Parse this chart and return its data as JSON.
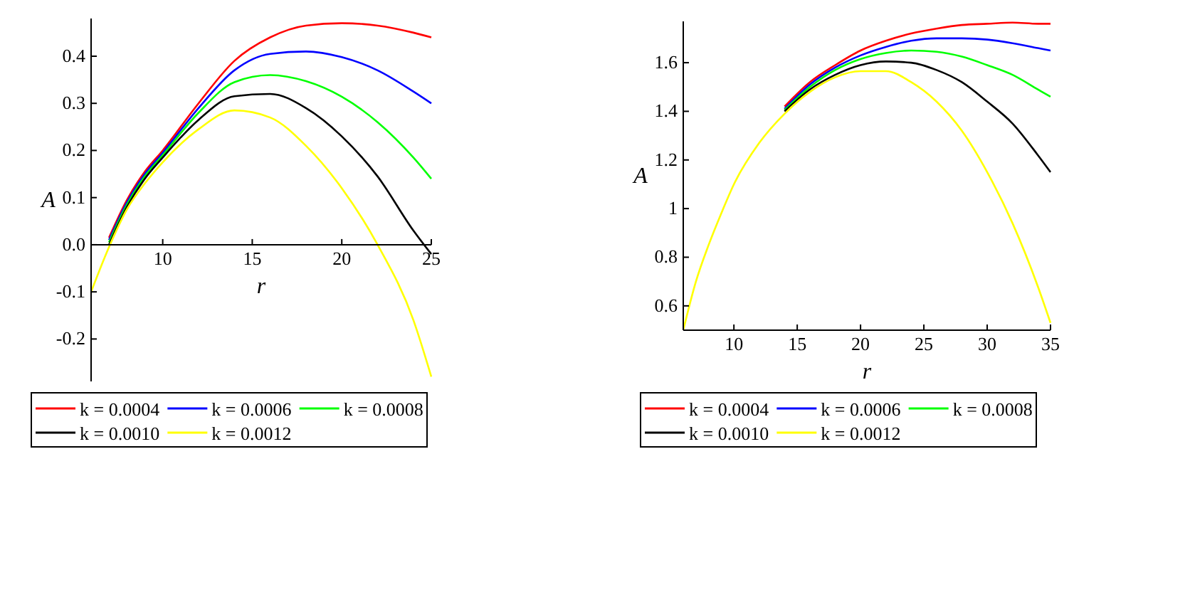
{
  "chart_data": [
    {
      "type": "line",
      "xlabel": "r",
      "ylabel": "A",
      "legend": "bottom",
      "xlim": [
        6,
        25
      ],
      "ylim": [
        -0.29,
        0.48
      ],
      "xticks": [
        10,
        15,
        20,
        25
      ],
      "yticks": [
        -0.2,
        -0.1,
        {
          "value": 0,
          "label": "0.0"
        },
        0.1,
        0.2,
        0.3,
        0.4
      ],
      "x": [
        6,
        7,
        8,
        9,
        10,
        12,
        14,
        16,
        18,
        20,
        22,
        24,
        25
      ],
      "series": [
        {
          "name": "k = 0.0004",
          "color": "#ff0000",
          "values": [
            null,
            0.015,
            0.095,
            0.155,
            0.2,
            0.3,
            0.39,
            0.44,
            0.465,
            0.47,
            0.465,
            0.45,
            0.44
          ]
        },
        {
          "name": "k = 0.0006",
          "color": "#0000ff",
          "values": [
            null,
            0.01,
            0.09,
            0.15,
            0.195,
            0.29,
            0.37,
            0.405,
            0.41,
            0.398,
            0.37,
            0.325,
            0.3
          ]
        },
        {
          "name": "k = 0.0008",
          "color": "#00ff00",
          "values": [
            null,
            0.005,
            0.085,
            0.145,
            0.19,
            0.28,
            0.345,
            0.36,
            0.347,
            0.314,
            0.26,
            0.185,
            0.14
          ]
        },
        {
          "name": "k = 0.0010",
          "color": "#000000",
          "values": [
            null,
            0,
            0.08,
            0.14,
            0.185,
            0.265,
            0.315,
            0.32,
            0.29,
            0.23,
            0.145,
            0.03,
            -0.02
          ]
        },
        {
          "name": "k = 0.0012",
          "color": "#ffff00",
          "values": [
            -0.1,
            -0.005,
            0.075,
            0.13,
            0.175,
            0.245,
            0.285,
            0.27,
            0.21,
            0.12,
            0,
            -0.16,
            -0.28
          ]
        }
      ]
    },
    {
      "type": "line",
      "xlabel": "r",
      "ylabel": "A",
      "legend": "bottom",
      "xlim": [
        6,
        35
      ],
      "ylim": [
        0.5,
        1.77
      ],
      "xticks": [
        10,
        15,
        20,
        25,
        30,
        35
      ],
      "yticks": [
        0.6,
        0.8,
        1,
        1.2,
        1.4,
        1.6
      ],
      "x": [
        6,
        7,
        8,
        9,
        10,
        12,
        14,
        16,
        18,
        20,
        22,
        24,
        26,
        28,
        30,
        32,
        34,
        35
      ],
      "series": [
        {
          "name": "k = 0.0004",
          "color": "#ff0000",
          "values": [
            null,
            null,
            null,
            null,
            null,
            null,
            1.42,
            1.52,
            1.59,
            1.65,
            1.69,
            1.72,
            1.74,
            1.755,
            1.76,
            1.765,
            1.76,
            1.76
          ]
        },
        {
          "name": "k = 0.0006",
          "color": "#0000ff",
          "values": [
            null,
            null,
            null,
            null,
            null,
            null,
            1.41,
            1.51,
            1.58,
            1.63,
            1.665,
            1.69,
            1.7,
            1.7,
            1.695,
            1.68,
            1.66,
            1.65
          ]
        },
        {
          "name": "k = 0.0008",
          "color": "#00ff00",
          "values": [
            null,
            null,
            null,
            null,
            null,
            null,
            1.405,
            1.5,
            1.57,
            1.615,
            1.64,
            1.65,
            1.645,
            1.625,
            1.59,
            1.55,
            1.49,
            1.46
          ]
        },
        {
          "name": "k = 0.0010",
          "color": "#000000",
          "values": [
            null,
            null,
            null,
            null,
            null,
            null,
            1.4,
            1.49,
            1.55,
            1.59,
            1.605,
            1.6,
            1.57,
            1.52,
            1.44,
            1.35,
            1.22,
            1.15
          ]
        },
        {
          "name": "k = 0.0012",
          "color": "#ffff00",
          "values": [
            0.5,
            0.7,
            0.85,
            0.98,
            1.1,
            1.27,
            1.39,
            1.48,
            1.54,
            1.565,
            1.565,
            1.52,
            1.44,
            1.32,
            1.15,
            0.94,
            0.68,
            0.53
          ]
        }
      ]
    }
  ]
}
